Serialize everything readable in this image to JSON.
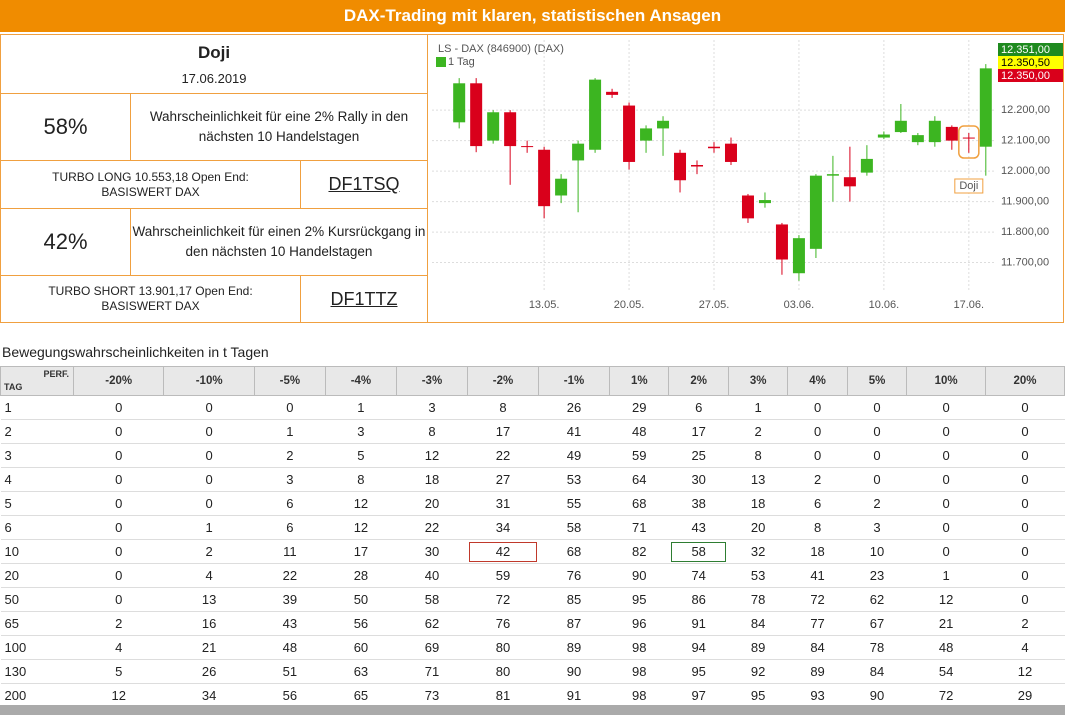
{
  "header": {
    "title": "DAX-Trading mit klaren, statistischen Ansagen"
  },
  "signal": {
    "title": "Doji",
    "date": "17.06.2019",
    "long": {
      "probability": "58%",
      "text": "Wahrscheinlichkeit für eine 2% Rally in den nächsten 10 Handelstagen",
      "product": "TURBO LONG 10.553,18 Open End: BASISWERT DAX",
      "wkn": "DF1TSQ"
    },
    "short": {
      "probability": "42%",
      "text": "Wahrscheinlichkeit für einen 2% Kursrückgang in den nächsten 10 Handelstagen",
      "product": "TURBO SHORT 13.901,17 Open End: BASISWERT DAX",
      "wkn": "DF1TTZ"
    }
  },
  "chart_data": {
    "type": "candlestick",
    "title": "LS - DAX (846900) (DAX)",
    "legend": "1 Tag",
    "up_color": "#3cb521",
    "down_color": "#d9001b",
    "grid": true,
    "open": [
      12160,
      12288,
      12100,
      12193,
      12082,
      12070,
      11920,
      12035,
      12070,
      12260,
      12215,
      12100,
      12140,
      12060,
      12020,
      12080,
      12090,
      11920,
      11895,
      11825,
      11665,
      11745,
      11985,
      11980,
      11995,
      12110,
      12128,
      12095,
      12095,
      12145,
      12110,
      12080
    ],
    "high": [
      12305,
      12305,
      12200,
      12200,
      12100,
      12080,
      11990,
      12100,
      12305,
      12270,
      12225,
      12150,
      12180,
      12070,
      12035,
      12095,
      12110,
      11925,
      11930,
      11830,
      11790,
      11990,
      12050,
      12080,
      12085,
      12130,
      12220,
      12125,
      12180,
      12150,
      12125,
      12351
    ],
    "low": [
      12140,
      12062,
      12090,
      11955,
      12060,
      11845,
      11895,
      11865,
      12060,
      12240,
      12005,
      12060,
      12050,
      11930,
      11990,
      12060,
      12020,
      11830,
      11880,
      11660,
      11640,
      11715,
      11900,
      11900,
      11985,
      12105,
      12125,
      12085,
      12080,
      12070,
      12060,
      11985
    ],
    "close": [
      12288,
      12082,
      12193,
      12082,
      12080,
      11885,
      11975,
      12090,
      12300,
      12250,
      12030,
      12140,
      12165,
      11970,
      12015,
      12075,
      12030,
      11845,
      11905,
      11710,
      11780,
      11985,
      11990,
      11950,
      12040,
      12120,
      12165,
      12118,
      12165,
      12100,
      12108,
      12337
    ],
    "xlim": [
      -1.6,
      31.6
    ],
    "xticks": [
      {
        "value": 5,
        "label": "13.05."
      },
      {
        "value": 10,
        "label": "20.05."
      },
      {
        "value": 15,
        "label": "27.05."
      },
      {
        "value": 20,
        "label": "03.06."
      },
      {
        "value": 25,
        "label": "10.06."
      },
      {
        "value": 30,
        "label": "17.06."
      }
    ],
    "ylim": [
      11610,
      12430
    ],
    "yticks": [
      {
        "value": 11700,
        "label": "11.700,00"
      },
      {
        "value": 11800,
        "label": "11.800,00"
      },
      {
        "value": 11900,
        "label": "11.900,00"
      },
      {
        "value": 12000,
        "label": "12.000,00"
      },
      {
        "value": 12100,
        "label": "12.100,00"
      },
      {
        "value": 12200,
        "label": "12.200,00"
      }
    ],
    "price_labels": [
      "12.351,00",
      "12.350,50",
      "12.350,00"
    ],
    "annotation": {
      "index": 30,
      "label": "Doji"
    }
  },
  "table": {
    "caption": "Bewegungswahrscheinlichkeiten in t Tagen",
    "row_header": "TAG",
    "col_header": "PERF.",
    "columns": [
      "-20%",
      "-10%",
      "-5%",
      "-4%",
      "-3%",
      "-2%",
      "-1%",
      "1%",
      "2%",
      "3%",
      "4%",
      "5%",
      "10%",
      "20%"
    ],
    "rows": [
      [
        1,
        0,
        0,
        0,
        1,
        3,
        8,
        26,
        29,
        6,
        1,
        0,
        0,
        0,
        0
      ],
      [
        2,
        0,
        0,
        1,
        3,
        8,
        17,
        41,
        48,
        17,
        2,
        0,
        0,
        0,
        0
      ],
      [
        3,
        0,
        0,
        2,
        5,
        12,
        22,
        49,
        59,
        25,
        8,
        0,
        0,
        0,
        0
      ],
      [
        4,
        0,
        0,
        3,
        8,
        18,
        27,
        53,
        64,
        30,
        13,
        2,
        0,
        0,
        0
      ],
      [
        5,
        0,
        0,
        6,
        12,
        20,
        31,
        55,
        68,
        38,
        18,
        6,
        2,
        0,
        0
      ],
      [
        6,
        0,
        1,
        6,
        12,
        22,
        34,
        58,
        71,
        43,
        20,
        8,
        3,
        0,
        0
      ],
      [
        10,
        0,
        2,
        11,
        17,
        30,
        42,
        68,
        82,
        58,
        32,
        18,
        10,
        0,
        0
      ],
      [
        20,
        0,
        4,
        22,
        28,
        40,
        59,
        76,
        90,
        74,
        53,
        41,
        23,
        1,
        0
      ],
      [
        50,
        0,
        13,
        39,
        50,
        58,
        72,
        85,
        95,
        86,
        78,
        72,
        62,
        12,
        0
      ],
      [
        65,
        2,
        16,
        43,
        56,
        62,
        76,
        87,
        96,
        91,
        84,
        77,
        67,
        21,
        2
      ],
      [
        100,
        4,
        21,
        48,
        60,
        69,
        80,
        89,
        98,
        94,
        89,
        84,
        78,
        48,
        4
      ],
      [
        130,
        5,
        26,
        51,
        63,
        71,
        80,
        90,
        98,
        95,
        92,
        89,
        84,
        54,
        12
      ],
      [
        200,
        12,
        34,
        56,
        65,
        73,
        81,
        91,
        98,
        97,
        95,
        93,
        90,
        72,
        29
      ]
    ]
  }
}
